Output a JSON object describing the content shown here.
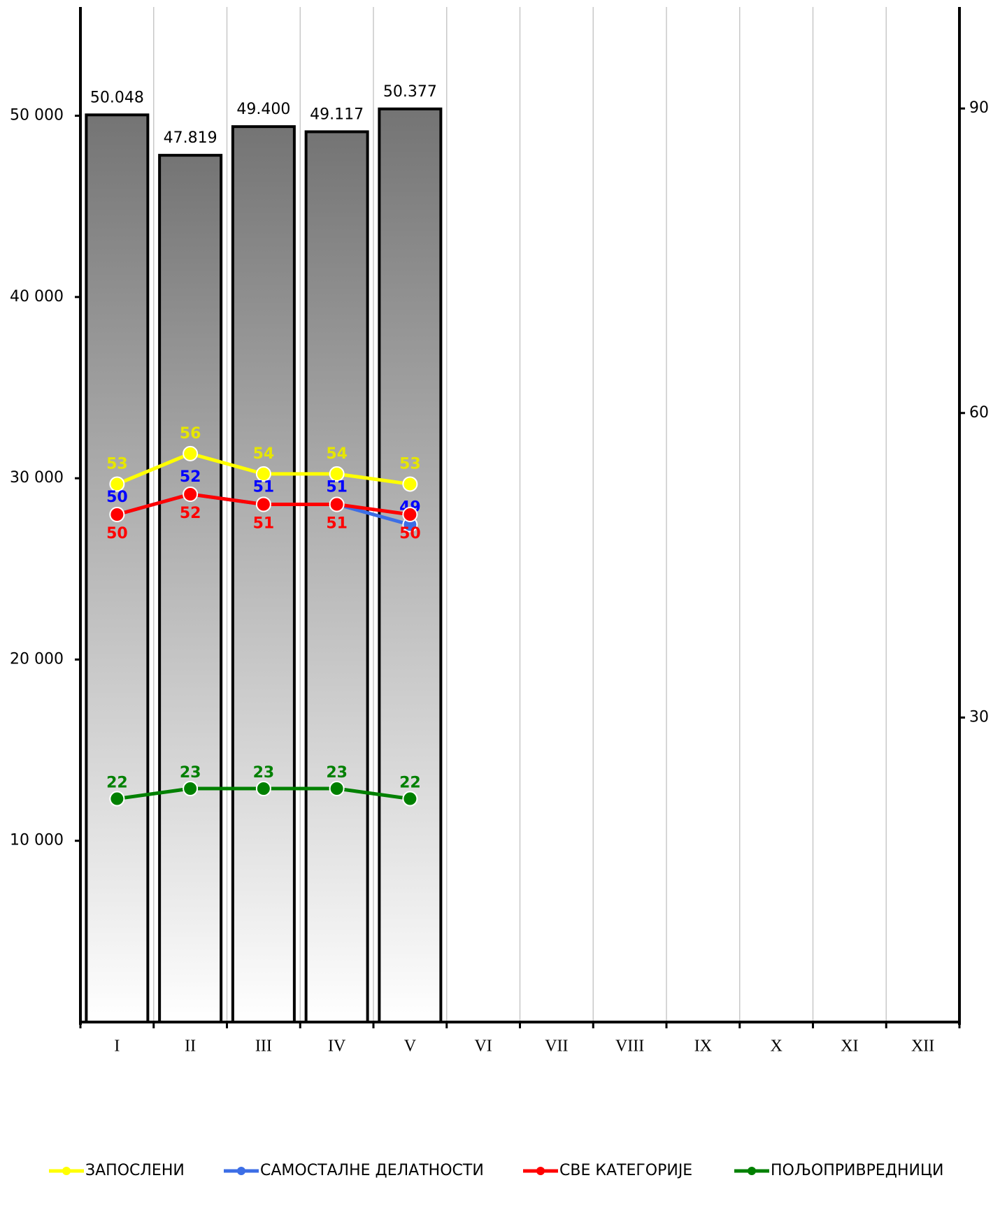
{
  "chart_data": {
    "type": "bar_line",
    "categories": [
      "I",
      "II",
      "III",
      "IV",
      "V",
      "VI",
      "VII",
      "VIII",
      "IX",
      "X",
      "XI",
      "XII"
    ],
    "values": [
      50048,
      47819,
      49400,
      49117,
      50377,
      null,
      null,
      null,
      null,
      null,
      null,
      null
    ],
    "value_labels": [
      "50.048",
      "47.819",
      "49.400",
      "49.117",
      "50.377",
      null,
      null,
      null,
      null,
      null,
      null,
      null
    ],
    "ylim": [
      0,
      56000
    ],
    "yticks": [
      {
        "value": 10000,
        "label": "10 000"
      },
      {
        "value": 20000,
        "label": "20 000"
      },
      {
        "value": 30000,
        "label": "30 000"
      },
      {
        "value": 40000,
        "label": "40 000"
      },
      {
        "value": 50000,
        "label": "50 000"
      }
    ],
    "y2lim": [
      0,
      100
    ],
    "y2ticks": [
      30,
      60,
      90
    ],
    "grid": true,
    "legend": "bottom",
    "series": [
      {
        "name": "ЗАПОСЛЕНИ",
        "color": "#ffff00",
        "label_color": "#e6e600",
        "axis": "y2",
        "values": [
          53,
          56,
          54,
          54,
          53,
          null,
          null,
          null,
          null,
          null,
          null,
          null
        ]
      },
      {
        "name": "САМОСТАЛНЕ ДЕЛАТНОСТИ",
        "color": "#3c6ee6",
        "label_color": "#0000ff",
        "axis": "y2",
        "values": [
          50,
          52,
          51,
          51,
          49,
          null,
          null,
          null,
          null,
          null,
          null,
          null
        ]
      },
      {
        "name": "СВЕ КАТЕГОРИЈЕ",
        "color": "#ff0000",
        "label_color": "#ff0000",
        "axis": "y2",
        "values": [
          50,
          52,
          51,
          51,
          50,
          null,
          null,
          null,
          null,
          null,
          null,
          null
        ]
      },
      {
        "name": "ПОЉОПРИВРЕДНИЦИ",
        "color": "#008000",
        "label_color": "#008000",
        "axis": "y2",
        "values": [
          22,
          23,
          23,
          23,
          22,
          null,
          null,
          null,
          null,
          null,
          null,
          null
        ]
      }
    ]
  }
}
